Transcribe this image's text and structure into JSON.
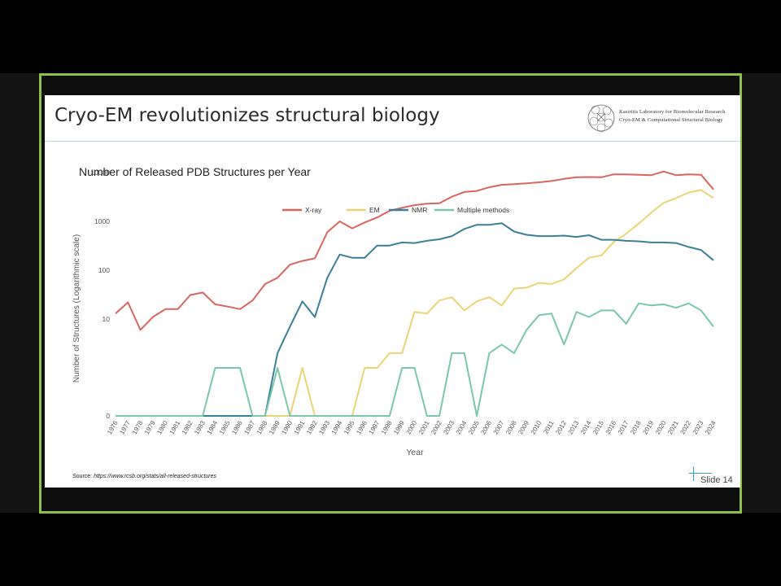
{
  "slide": {
    "title": "Cryo-EM revolutionizes structural biology",
    "logo_line1": "Kastritis Laboratory for Biomolecular Research",
    "logo_line2": "Cryo-EM & Computational Structural Biology",
    "subtitle": "Number of Released PDB Structures per Year",
    "source_label": "Source:",
    "source_url": "https://www.rcsb.org/stats/all-released-structures",
    "slide_number": "Slide 14",
    "accent_color": "#8cc04a"
  },
  "chart_data": {
    "type": "line",
    "title": "",
    "xlabel": "Year",
    "ylabel": "Number of Structures (Logarithmic scale)",
    "yscale": "log",
    "ylim": [
      0,
      10000
    ],
    "yticks": [
      "0",
      "10",
      "100",
      "1000",
      "10000"
    ],
    "legend_position": "top-center",
    "grid": false,
    "x": [
      1976,
      1977,
      1978,
      1979,
      1980,
      1981,
      1982,
      1983,
      1984,
      1985,
      1986,
      1987,
      1988,
      1989,
      1990,
      1991,
      1992,
      1993,
      1994,
      1995,
      1996,
      1997,
      1998,
      1999,
      2000,
      2001,
      2002,
      2003,
      2004,
      2005,
      2006,
      2007,
      2008,
      2009,
      2010,
      2011,
      2012,
      2013,
      2014,
      2015,
      2016,
      2017,
      2018,
      2019,
      2020,
      2021,
      2022,
      2023,
      2024
    ],
    "series": [
      {
        "name": "X-ray",
        "color": "#d9655f",
        "values": [
          13,
          22,
          6,
          11,
          16,
          16,
          31,
          35,
          20,
          18,
          16,
          24,
          52,
          70,
          130,
          155,
          175,
          600,
          1000,
          720,
          950,
          1200,
          1650,
          1900,
          2150,
          2300,
          2350,
          3200,
          4000,
          4200,
          5000,
          5600,
          5800,
          6000,
          6300,
          6700,
          7400,
          8000,
          8100,
          8000,
          9200,
          9200,
          9000,
          8800,
          10500,
          8800,
          9200,
          9000,
          4500
        ]
      },
      {
        "name": "EM",
        "color": "#ead475",
        "values": [
          0,
          0,
          0,
          0,
          0,
          0,
          0,
          0,
          0,
          0,
          0,
          0,
          0,
          0,
          0,
          1,
          0,
          0,
          0,
          0,
          1,
          1,
          2,
          2,
          14,
          13,
          24,
          28,
          15,
          23,
          28,
          19,
          42,
          44,
          55,
          52,
          65,
          110,
          180,
          200,
          380,
          560,
          900,
          1500,
          2400,
          3000,
          3900,
          4400,
          3000
        ]
      },
      {
        "name": "NMR",
        "color": "#3b7f99",
        "values": [
          0,
          0,
          0,
          0,
          0,
          0,
          0,
          0,
          0,
          0,
          0,
          0,
          0,
          2,
          7,
          23,
          11,
          70,
          210,
          180,
          180,
          320,
          320,
          370,
          360,
          400,
          430,
          500,
          700,
          850,
          850,
          920,
          620,
          530,
          500,
          500,
          510,
          480,
          520,
          420,
          420,
          400,
          390,
          370,
          370,
          360,
          300,
          260,
          160
        ]
      },
      {
        "name": "Multiple methods",
        "color": "#79c8a9",
        "values": [
          0,
          0,
          0,
          0,
          0,
          0,
          0,
          0,
          1,
          1,
          1,
          0,
          0,
          1,
          0,
          0,
          0,
          0,
          0,
          0,
          0,
          0,
          0,
          1,
          1,
          0,
          0,
          2,
          2,
          0,
          2,
          3,
          2,
          6,
          12,
          13,
          3,
          14,
          11,
          15,
          15,
          8,
          21,
          19,
          20,
          17,
          21,
          15,
          7
        ]
      }
    ]
  }
}
